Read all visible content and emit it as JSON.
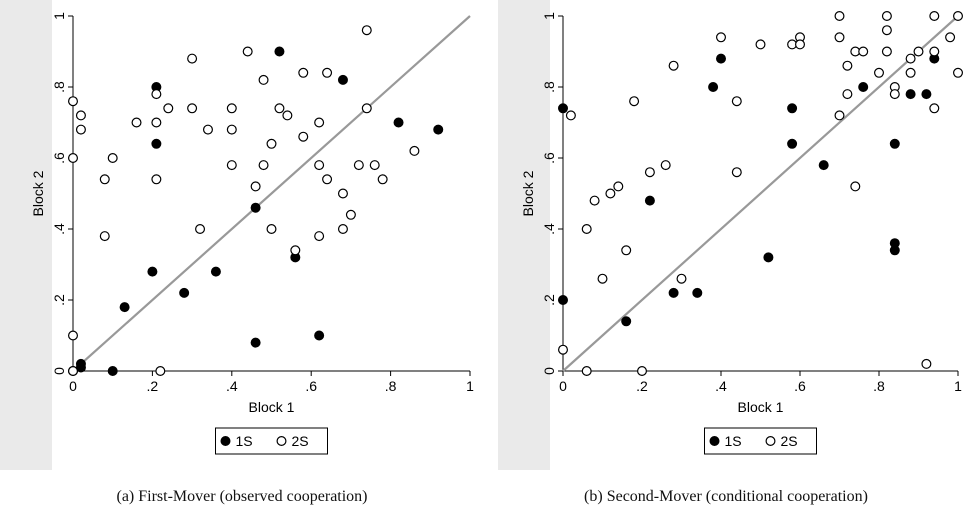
{
  "colors": {
    "background": "#eaeaea",
    "plot": "#ffffff",
    "diagonal": "#999999",
    "marker": "#000000"
  },
  "chart_data": [
    {
      "id": "a",
      "type": "scatter",
      "caption": "(a) First-Mover (observed cooperation)",
      "xlabel": "Block 1",
      "ylabel": "Block 2",
      "xlim": [
        0,
        1
      ],
      "ylim": [
        0,
        1
      ],
      "xticks": [
        {
          "v": 0,
          "label": "0"
        },
        {
          "v": 0.2,
          "label": ".2"
        },
        {
          "v": 0.4,
          "label": ".4"
        },
        {
          "v": 0.6,
          "label": ".6"
        },
        {
          "v": 0.8,
          "label": ".8"
        },
        {
          "v": 1,
          "label": "1"
        }
      ],
      "yticks": [
        {
          "v": 0,
          "label": "0"
        },
        {
          "v": 0.2,
          "label": ".2"
        },
        {
          "v": 0.4,
          "label": ".4"
        },
        {
          "v": 0.6,
          "label": ".6"
        },
        {
          "v": 0.8,
          "label": ".8"
        },
        {
          "v": 1,
          "label": "1"
        }
      ],
      "reference_line": "45-degree",
      "legend_placement": "bottom",
      "series": [
        {
          "name": "1S",
          "marker": "filled-circle",
          "points": [
            [
              0.02,
              0.02
            ],
            [
              0.02,
              0.01
            ],
            [
              0.0,
              0.0
            ],
            [
              0.1,
              0.0
            ],
            [
              0.13,
              0.18
            ],
            [
              0.2,
              0.28
            ],
            [
              0.21,
              0.8
            ],
            [
              0.21,
              0.64
            ],
            [
              0.28,
              0.22
            ],
            [
              0.36,
              0.28
            ],
            [
              0.46,
              0.08
            ],
            [
              0.46,
              0.46
            ],
            [
              0.52,
              0.9
            ],
            [
              0.56,
              0.32
            ],
            [
              0.62,
              0.1
            ],
            [
              0.68,
              0.82
            ],
            [
              0.82,
              0.7
            ],
            [
              0.92,
              0.68
            ]
          ]
        },
        {
          "name": "2S",
          "marker": "hollow-circle",
          "points": [
            [
              0.0,
              0.76
            ],
            [
              0.0,
              0.6
            ],
            [
              0.02,
              0.72
            ],
            [
              0.02,
              0.68
            ],
            [
              0.0,
              0.1
            ],
            [
              0.0,
              0.0
            ],
            [
              0.08,
              0.54
            ],
            [
              0.08,
              0.38
            ],
            [
              0.1,
              0.6
            ],
            [
              0.16,
              0.7
            ],
            [
              0.21,
              0.78
            ],
            [
              0.21,
              0.7
            ],
            [
              0.21,
              0.54
            ],
            [
              0.22,
              0.0
            ],
            [
              0.24,
              0.74
            ],
            [
              0.3,
              0.88
            ],
            [
              0.3,
              0.74
            ],
            [
              0.32,
              0.4
            ],
            [
              0.34,
              0.68
            ],
            [
              0.4,
              0.74
            ],
            [
              0.4,
              0.68
            ],
            [
              0.4,
              0.58
            ],
            [
              0.44,
              0.9
            ],
            [
              0.46,
              0.52
            ],
            [
              0.48,
              0.82
            ],
            [
              0.48,
              0.58
            ],
            [
              0.5,
              0.64
            ],
            [
              0.5,
              0.4
            ],
            [
              0.52,
              0.74
            ],
            [
              0.54,
              0.72
            ],
            [
              0.56,
              0.34
            ],
            [
              0.58,
              0.84
            ],
            [
              0.58,
              0.66
            ],
            [
              0.62,
              0.7
            ],
            [
              0.62,
              0.58
            ],
            [
              0.62,
              0.38
            ],
            [
              0.64,
              0.84
            ],
            [
              0.64,
              0.54
            ],
            [
              0.68,
              0.5
            ],
            [
              0.68,
              0.4
            ],
            [
              0.7,
              0.44
            ],
            [
              0.72,
              0.58
            ],
            [
              0.74,
              0.96
            ],
            [
              0.74,
              0.74
            ],
            [
              0.76,
              0.58
            ],
            [
              0.78,
              0.54
            ],
            [
              0.86,
              0.62
            ]
          ]
        }
      ]
    },
    {
      "id": "b",
      "type": "scatter",
      "caption": "(b) Second-Mover (conditional cooperation)",
      "xlabel": "Block 1",
      "ylabel": "Block 2",
      "xlim": [
        0,
        1
      ],
      "ylim": [
        0,
        1
      ],
      "xticks": [
        {
          "v": 0,
          "label": "0"
        },
        {
          "v": 0.2,
          "label": ".2"
        },
        {
          "v": 0.4,
          "label": ".4"
        },
        {
          "v": 0.6,
          "label": ".6"
        },
        {
          "v": 0.8,
          "label": ".8"
        },
        {
          "v": 1,
          "label": "1"
        }
      ],
      "yticks": [
        {
          "v": 0,
          "label": "0"
        },
        {
          "v": 0.2,
          "label": ".2"
        },
        {
          "v": 0.4,
          "label": ".4"
        },
        {
          "v": 0.6,
          "label": ".6"
        },
        {
          "v": 0.8,
          "label": ".8"
        },
        {
          "v": 1,
          "label": "1"
        }
      ],
      "reference_line": "45-degree",
      "legend_placement": "bottom",
      "series": [
        {
          "name": "1S",
          "marker": "filled-circle",
          "points": [
            [
              0.0,
              0.74
            ],
            [
              0.0,
              0.2
            ],
            [
              0.16,
              0.14
            ],
            [
              0.22,
              0.48
            ],
            [
              0.28,
              0.22
            ],
            [
              0.34,
              0.22
            ],
            [
              0.38,
              0.8
            ],
            [
              0.4,
              0.88
            ],
            [
              0.52,
              0.32
            ],
            [
              0.58,
              0.74
            ],
            [
              0.58,
              0.64
            ],
            [
              0.66,
              0.58
            ],
            [
              0.76,
              0.8
            ],
            [
              0.84,
              0.64
            ],
            [
              0.84,
              0.36
            ],
            [
              0.84,
              0.34
            ],
            [
              0.88,
              0.78
            ],
            [
              0.92,
              0.78
            ],
            [
              0.94,
              0.88
            ]
          ]
        },
        {
          "name": "2S",
          "marker": "hollow-circle",
          "points": [
            [
              0.0,
              0.06
            ],
            [
              0.02,
              0.72
            ],
            [
              0.06,
              0.4
            ],
            [
              0.06,
              0.0
            ],
            [
              0.08,
              0.48
            ],
            [
              0.1,
              0.26
            ],
            [
              0.12,
              0.5
            ],
            [
              0.14,
              0.52
            ],
            [
              0.16,
              0.34
            ],
            [
              0.18,
              0.76
            ],
            [
              0.2,
              0.0
            ],
            [
              0.22,
              0.56
            ],
            [
              0.26,
              0.58
            ],
            [
              0.28,
              0.86
            ],
            [
              0.3,
              0.26
            ],
            [
              0.4,
              0.94
            ],
            [
              0.44,
              0.76
            ],
            [
              0.44,
              0.56
            ],
            [
              0.5,
              0.92
            ],
            [
              0.58,
              0.92
            ],
            [
              0.6,
              0.94
            ],
            [
              0.6,
              0.92
            ],
            [
              0.7,
              1.0
            ],
            [
              0.7,
              0.94
            ],
            [
              0.7,
              0.72
            ],
            [
              0.72,
              0.86
            ],
            [
              0.72,
              0.78
            ],
            [
              0.74,
              0.9
            ],
            [
              0.74,
              0.52
            ],
            [
              0.76,
              0.9
            ],
            [
              0.8,
              0.84
            ],
            [
              0.82,
              1.0
            ],
            [
              0.82,
              0.96
            ],
            [
              0.82,
              0.9
            ],
            [
              0.84,
              0.8
            ],
            [
              0.84,
              0.78
            ],
            [
              0.88,
              0.88
            ],
            [
              0.88,
              0.84
            ],
            [
              0.9,
              0.9
            ],
            [
              0.92,
              0.02
            ],
            [
              0.94,
              1.0
            ],
            [
              0.94,
              0.9
            ],
            [
              0.94,
              0.74
            ],
            [
              0.98,
              0.94
            ],
            [
              1.0,
              1.0
            ],
            [
              1.0,
              0.84
            ]
          ]
        }
      ]
    }
  ]
}
